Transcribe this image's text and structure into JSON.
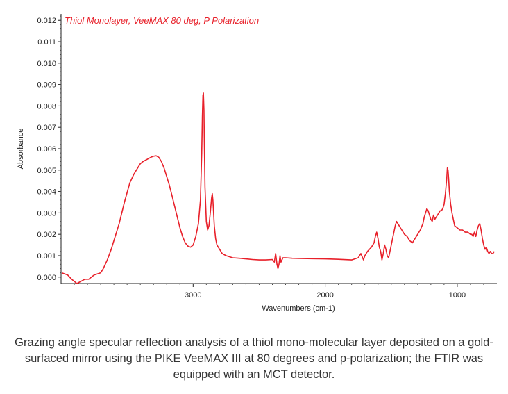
{
  "chart_data": {
    "type": "line",
    "title": "Thiol Monolayer, VeeMAX 80 deg, P Polarization",
    "xlabel": "Wavenumbers (cm-1)",
    "ylabel": "Absorbance",
    "xlim": [
      4000,
      700
    ],
    "ylim": [
      -0.0003,
      0.0123
    ],
    "x_ticks": [
      {
        "value": 3000,
        "label": "3000"
      },
      {
        "value": 2000,
        "label": "2000"
      },
      {
        "value": 1000,
        "label": "1000"
      }
    ],
    "y_ticks": [
      {
        "value": 0.0,
        "label": "0.000"
      },
      {
        "value": 0.001,
        "label": "0.001"
      },
      {
        "value": 0.002,
        "label": "0.002"
      },
      {
        "value": 0.003,
        "label": "0.003"
      },
      {
        "value": 0.004,
        "label": "0.004"
      },
      {
        "value": 0.005,
        "label": "0.005"
      },
      {
        "value": 0.006,
        "label": "0.006"
      },
      {
        "value": 0.007,
        "label": "0.007"
      },
      {
        "value": 0.008,
        "label": "0.008"
      },
      {
        "value": 0.009,
        "label": "0.009"
      },
      {
        "value": 0.01,
        "label": "0.010"
      },
      {
        "value": 0.011,
        "label": "0.011"
      },
      {
        "value": 0.012,
        "label": "0.012"
      }
    ],
    "grid": false,
    "series": [
      {
        "color": "#e8202a",
        "x": [
          3995,
          3950,
          3920,
          3880,
          3850,
          3820,
          3790,
          3750,
          3700,
          3680,
          3650,
          3620,
          3600,
          3560,
          3520,
          3480,
          3450,
          3420,
          3400,
          3380,
          3350,
          3320,
          3300,
          3280,
          3260,
          3240,
          3220,
          3200,
          3180,
          3160,
          3140,
          3120,
          3100,
          3080,
          3060,
          3040,
          3020,
          3000,
          2980,
          2960,
          2945,
          2935,
          2930,
          2926,
          2922,
          2918,
          2915,
          2910,
          2900,
          2890,
          2880,
          2870,
          2860,
          2855,
          2850,
          2845,
          2840,
          2830,
          2820,
          2800,
          2780,
          2750,
          2700,
          2650,
          2600,
          2550,
          2500,
          2450,
          2400,
          2385,
          2375,
          2365,
          2358,
          2350,
          2342,
          2335,
          2320,
          2300,
          2250,
          2200,
          2100,
          2000,
          1900,
          1800,
          1750,
          1730,
          1710,
          1700,
          1680,
          1650,
          1630,
          1620,
          1610,
          1600,
          1590,
          1580,
          1570,
          1560,
          1550,
          1540,
          1530,
          1520,
          1510,
          1500,
          1490,
          1480,
          1470,
          1460,
          1450,
          1440,
          1420,
          1400,
          1380,
          1360,
          1340,
          1320,
          1300,
          1280,
          1260,
          1250,
          1240,
          1230,
          1220,
          1210,
          1200,
          1190,
          1180,
          1170,
          1160,
          1150,
          1140,
          1130,
          1120,
          1110,
          1100,
          1090,
          1080,
          1075,
          1070,
          1065,
          1060,
          1050,
          1040,
          1030,
          1020,
          1000,
          980,
          960,
          940,
          920,
          900,
          890,
          880,
          870,
          860,
          850,
          840,
          830,
          820,
          810,
          800,
          790,
          780,
          770,
          760,
          750,
          740,
          730,
          720
        ],
        "y": [
          0.0002,
          0.0001,
          -0.0001,
          -0.0003,
          -0.0002,
          -0.0001,
          -0.0001,
          0.0001,
          0.0002,
          0.0004,
          0.0008,
          0.0013,
          0.0017,
          0.0025,
          0.0035,
          0.0044,
          0.0048,
          0.0051,
          0.0053,
          0.0054,
          0.0055,
          0.0056,
          0.00565,
          0.00567,
          0.0056,
          0.0054,
          0.0051,
          0.0047,
          0.0043,
          0.0038,
          0.0033,
          0.0028,
          0.0023,
          0.0019,
          0.0016,
          0.00145,
          0.0014,
          0.0015,
          0.0019,
          0.0025,
          0.0036,
          0.0058,
          0.0075,
          0.0085,
          0.0086,
          0.0078,
          0.0062,
          0.0042,
          0.0026,
          0.0022,
          0.0024,
          0.003,
          0.0037,
          0.0039,
          0.0036,
          0.003,
          0.0024,
          0.0018,
          0.0015,
          0.0013,
          0.0011,
          0.001,
          0.0009,
          0.00088,
          0.00085,
          0.00082,
          0.0008,
          0.0008,
          0.00082,
          0.0007,
          0.0011,
          0.0006,
          0.0004,
          0.0006,
          0.001,
          0.0007,
          0.0009,
          0.0009,
          0.00088,
          0.00087,
          0.00086,
          0.00085,
          0.00083,
          0.0008,
          0.0009,
          0.0011,
          0.0008,
          0.001,
          0.0012,
          0.0014,
          0.0016,
          0.0019,
          0.0021,
          0.0018,
          0.0014,
          0.0012,
          0.0008,
          0.0011,
          0.0015,
          0.0013,
          0.001,
          0.0009,
          0.0012,
          0.0015,
          0.0018,
          0.0021,
          0.0024,
          0.0026,
          0.0025,
          0.0024,
          0.0022,
          0.002,
          0.0019,
          0.0017,
          0.0016,
          0.0018,
          0.002,
          0.0022,
          0.0025,
          0.0028,
          0.003,
          0.0032,
          0.0031,
          0.0029,
          0.0027,
          0.0026,
          0.0029,
          0.0027,
          0.0028,
          0.0029,
          0.003,
          0.0031,
          0.0031,
          0.0032,
          0.0034,
          0.0039,
          0.0046,
          0.0051,
          0.005,
          0.0046,
          0.004,
          0.0034,
          0.003,
          0.0027,
          0.0024,
          0.0023,
          0.0022,
          0.0022,
          0.0021,
          0.0021,
          0.002,
          0.002,
          0.0019,
          0.0021,
          0.0019,
          0.0022,
          0.0024,
          0.0025,
          0.0022,
          0.0018,
          0.0015,
          0.0013,
          0.0014,
          0.0012,
          0.0011,
          0.0012,
          0.0011,
          0.0011,
          0.0012
        ]
      }
    ]
  },
  "caption": "Grazing angle specular reflection analysis of a thiol mono-molecular layer deposited on a gold-surfaced mirror using the PIKE VeeMAX III at 80 degrees and p-polarization; the FTIR was equipped with an MCT detector."
}
